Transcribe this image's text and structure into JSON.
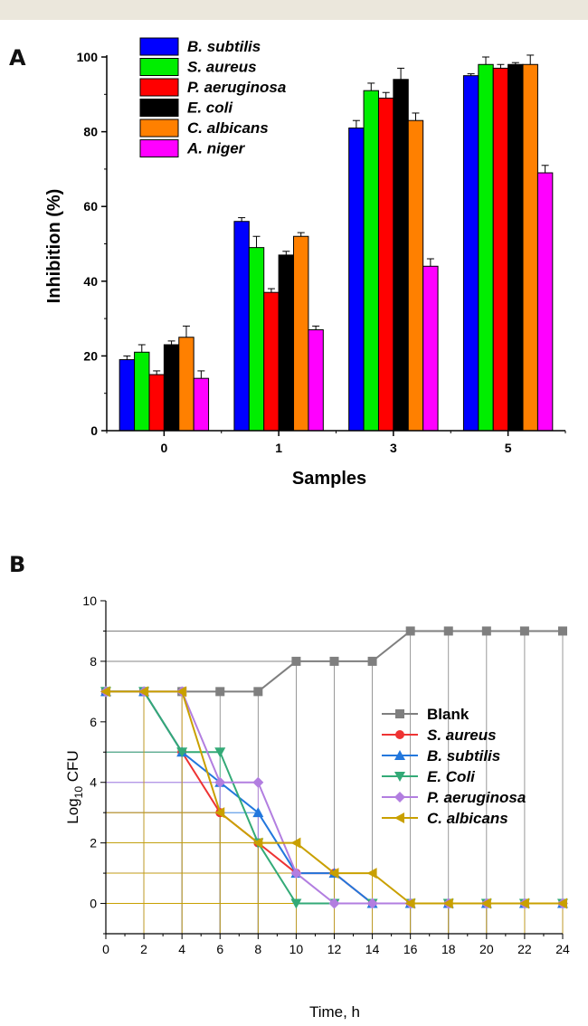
{
  "chart_data": [
    {
      "panel": "A",
      "type": "bar",
      "xlabel": "Samples",
      "ylabel": "Inhibition (%)",
      "ylim": [
        0,
        100
      ],
      "yticks": [
        0,
        20,
        40,
        60,
        80,
        100
      ],
      "categories": [
        "0",
        "1",
        "3",
        "5"
      ],
      "legend_position": "top-left",
      "series": [
        {
          "name": "B. subtilis",
          "color": "#0000ff",
          "values": [
            19,
            56,
            81,
            95
          ],
          "errors": [
            1,
            1,
            2,
            0.5
          ]
        },
        {
          "name": "S. aureus",
          "color": "#00ee00",
          "values": [
            21,
            49,
            91,
            98
          ],
          "errors": [
            2,
            3,
            2,
            2
          ]
        },
        {
          "name": "P. aeruginosa",
          "color": "#ff0000",
          "values": [
            15,
            37,
            89,
            97
          ],
          "errors": [
            1,
            1,
            1.5,
            1
          ]
        },
        {
          "name": "E. coli",
          "color": "#000000",
          "values": [
            23,
            47,
            94,
            98
          ],
          "errors": [
            1,
            1,
            3,
            0.5
          ]
        },
        {
          "name": "C. albicans",
          "color": "#ff8000",
          "values": [
            25,
            52,
            83,
            98
          ],
          "errors": [
            3,
            1,
            2,
            2.5
          ]
        },
        {
          "name": "A. niger",
          "color": "#ff00ff",
          "values": [
            14,
            27,
            44,
            69
          ],
          "errors": [
            2,
            1,
            2,
            2
          ]
        }
      ]
    },
    {
      "panel": "B",
      "type": "line",
      "xlabel": "Time, h",
      "ylabel_main": "Log",
      "ylabel_sub": "10",
      "ylabel_tail": " CFU",
      "xlim": [
        0,
        24
      ],
      "ylim": [
        -1,
        10
      ],
      "xticks": [
        0,
        2,
        4,
        6,
        8,
        10,
        12,
        14,
        16,
        18,
        20,
        22,
        24
      ],
      "yticks": [
        0,
        2,
        4,
        6,
        8,
        10
      ],
      "legend_position": "right",
      "x": [
        0,
        2,
        4,
        6,
        8,
        10,
        12,
        14,
        16,
        18,
        20,
        22,
        24
      ],
      "series": [
        {
          "name": "Blank",
          "color": "#7f7f7f",
          "marker": "square",
          "values": [
            7,
            7,
            7,
            7,
            7,
            8,
            8,
            8,
            9,
            9,
            9,
            9,
            9
          ]
        },
        {
          "name": "S. aureus",
          "color": "#ee3333",
          "marker": "circle",
          "values": [
            7,
            7,
            5,
            3,
            2,
            1,
            1,
            0,
            0,
            0,
            0,
            0,
            0
          ]
        },
        {
          "name": "B. subtilis",
          "color": "#2277dd",
          "marker": "triangle-up",
          "values": [
            7,
            7,
            5,
            4,
            3,
            1,
            1,
            0,
            0,
            0,
            0,
            0,
            0
          ]
        },
        {
          "name": "E. Coli",
          "color": "#33aa77",
          "marker": "triangle-down",
          "values": [
            7,
            7,
            5,
            5,
            2,
            0,
            0,
            0,
            0,
            0,
            0,
            0,
            0
          ]
        },
        {
          "name": "P. aeruginosa",
          "color": "#b27ee0",
          "marker": "diamond",
          "values": [
            7,
            7,
            7,
            4,
            4,
            1,
            0,
            0,
            0,
            0,
            0,
            0,
            0
          ]
        },
        {
          "name": "C. albicans",
          "color": "#c9a000",
          "marker": "triangle-left",
          "values": [
            7,
            7,
            7,
            3,
            2,
            2,
            1,
            1,
            0,
            0,
            0,
            0,
            0
          ]
        }
      ]
    }
  ]
}
